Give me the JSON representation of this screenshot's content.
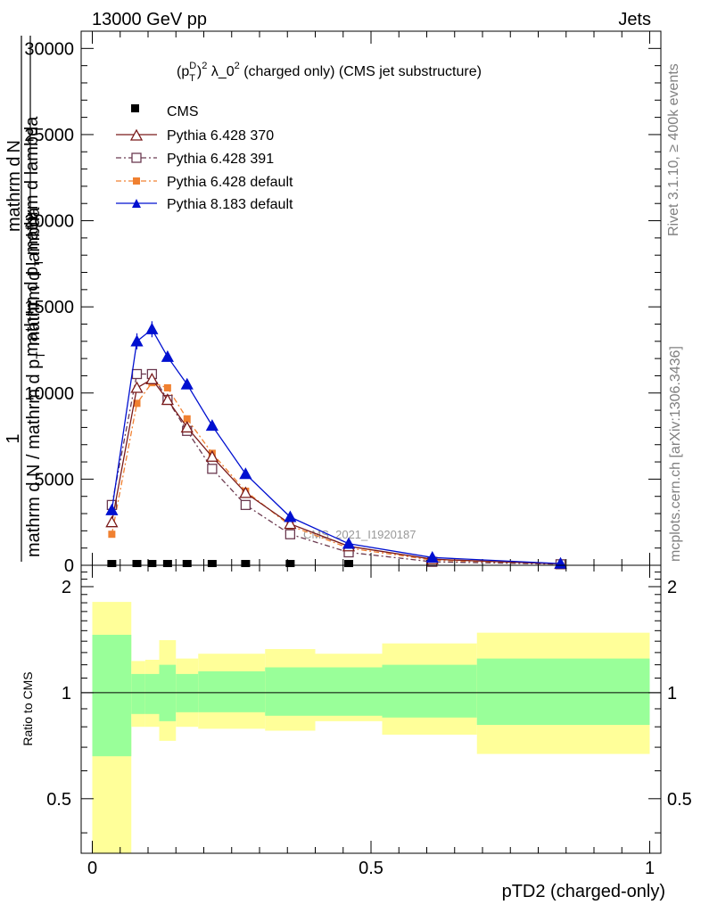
{
  "header": {
    "left": "13000 GeV pp",
    "right": "Jets"
  },
  "side_labels": {
    "rivet": "Rivet 3.1.10, ≥ 400k events",
    "mcplots": "mcplots.cern.ch [arXiv:1306.3436]"
  },
  "watermark": "CMS_2021_I1920187",
  "colors": {
    "pythia6_370": "#7a1a1a",
    "pythia6_391": "#6b3a50",
    "pythia6_default": "#f08030",
    "pythia8_default": "#0010d0",
    "band_outer": "#ffff99",
    "band_inner": "#99ff99"
  },
  "chart_data": [
    {
      "type": "line",
      "title": "(p_T^D)^2 λ_0^2 (charged only) (CMS jet substructure)",
      "title_parts": {
        "p": "(p",
        "sup1": "D",
        "sub1": "T",
        "close": ")",
        "sup2": "2",
        "lam": " λ_0",
        "sup3": "2",
        "rest": " (charged only) (CMS jet substructure)"
      },
      "ylabel_parts": {
        "one": "1",
        "denom": "mathrm d N / mathrm d p",
        "denom_sub": "T",
        "denom2": "mathrm d lambda",
        "num": "mathrm d",
        "num2": "N",
        "num_mid": "mathrm d p",
        "num_mid_sub": "T",
        "num_end": "mathrm d lambda"
      },
      "xlim": [
        -0.02,
        1.02
      ],
      "ylim": [
        0,
        31000
      ],
      "y_ticks": [
        0,
        5000,
        10000,
        15000,
        20000,
        25000,
        30000
      ],
      "y_tick_labels": [
        "0",
        "5000",
        "10000",
        "15000",
        "20000",
        "25000",
        "30000"
      ],
      "legend": [
        "CMS",
        "Pythia 6.428 370",
        "Pythia 6.428 391",
        "Pythia 6.428 default",
        "Pythia 8.183 default"
      ],
      "x": [
        0.035,
        0.08,
        0.107,
        0.135,
        0.17,
        0.215,
        0.275,
        0.355,
        0.46,
        0.61,
        0.84
      ],
      "series": [
        {
          "name": "CMS",
          "values": [
            50,
            50,
            50,
            50,
            50,
            50,
            50,
            50,
            50,
            0,
            0
          ]
        },
        {
          "name": "Pythia 6.428 370",
          "values": [
            2500,
            10300,
            10800,
            9600,
            8000,
            6300,
            4200,
            2400,
            1100,
            350,
            80
          ]
        },
        {
          "name": "Pythia 6.428 391",
          "values": [
            3500,
            11100,
            11100,
            9600,
            7800,
            5600,
            3500,
            1800,
            750,
            200,
            60
          ]
        },
        {
          "name": "Pythia 6.428 default",
          "values": [
            1800,
            9400,
            10600,
            10300,
            8500,
            6500,
            4300,
            2300,
            1000,
            300,
            70
          ]
        },
        {
          "name": "Pythia 8.183 default",
          "values": [
            3200,
            13000,
            13700,
            12100,
            10500,
            8100,
            5300,
            2800,
            1250,
            450,
            100
          ]
        }
      ]
    },
    {
      "type": "area",
      "ylabel": "Ratio to CMS",
      "xlabel": "pTD2 (charged-only)",
      "xlim": [
        -0.02,
        1.02
      ],
      "ylim": [
        0.35,
        2.3
      ],
      "y_ticks": [
        0.5,
        1,
        2
      ],
      "y_tick_labels": [
        "0.5",
        "1",
        "2"
      ],
      "x_ticks": [
        0,
        0.5,
        1
      ],
      "x_tick_labels": [
        "0",
        "0.5",
        "1"
      ],
      "bin_edges": [
        0,
        0.07,
        0.095,
        0.12,
        0.15,
        0.19,
        0.24,
        0.31,
        0.4,
        0.52,
        0.69,
        1.0
      ],
      "band_inner_hi": [
        1.46,
        1.13,
        1.13,
        1.2,
        1.13,
        1.15,
        1.15,
        1.18,
        1.18,
        1.2,
        1.25
      ],
      "band_inner_lo": [
        0.66,
        0.87,
        0.87,
        0.83,
        0.88,
        0.88,
        0.88,
        0.86,
        0.86,
        0.85,
        0.81
      ],
      "band_outer_hi": [
        1.81,
        1.23,
        1.24,
        1.41,
        1.25,
        1.29,
        1.29,
        1.33,
        1.29,
        1.38,
        1.48
      ],
      "band_outer_lo": [
        0.35,
        0.8,
        0.8,
        0.73,
        0.8,
        0.79,
        0.79,
        0.78,
        0.83,
        0.76,
        0.67
      ],
      "reference": 1
    }
  ]
}
